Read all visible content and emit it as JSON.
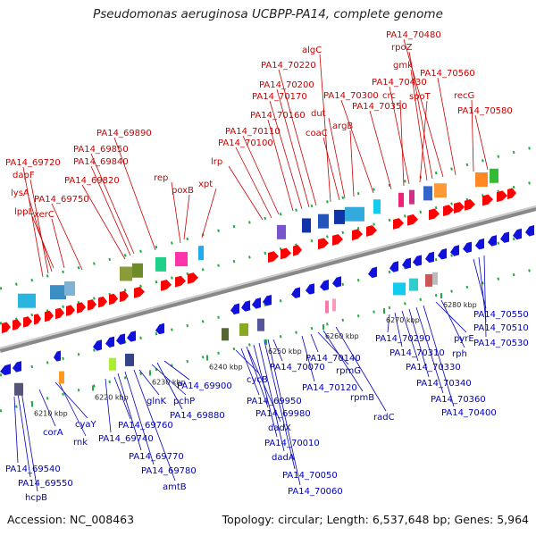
{
  "title": "Pseudomonas aeruginosa UCBPP-PA14, complete genome",
  "accession": "Accession: NC_008463",
  "topology": "Topology: circular; Length: 6,537,648 bp; Genes: 5,964",
  "ticks": [
    "6210 kbp",
    "6220 kbp",
    "6230 kbp",
    "6240 kbp",
    "6250 kbp",
    "6260 kbp",
    "6270 kbp",
    "6280 kbp"
  ],
  "top_labels": [
    "PA14_69720",
    "dapF",
    "lysA",
    "lppL",
    "xerC",
    "PA14_69750",
    "PA14_69820",
    "PA14_69840",
    "PA14_69850",
    "PA14_69890",
    "rep",
    "poxB",
    "xpt",
    "lrp",
    "PA14_70100",
    "PA14_70110",
    "PA14_70160",
    "PA14_70170",
    "PA14_70200",
    "PA14_70220",
    "algC",
    "coaC",
    "dut",
    "argB",
    "PA14_70300",
    "PA14_70350",
    "crc",
    "PA14_70430",
    "spoT",
    "gmk",
    "rpoZ",
    "PA14_70480",
    "PA14_70560",
    "recG",
    "PA14_70580"
  ],
  "bottom_labels": [
    "PA14_69540",
    "PA14_69550",
    "hcpB",
    "corA",
    "cyaY",
    "rnk",
    "PA14_69740",
    "PA14_69760",
    "PA14_69770",
    "PA14_69780",
    "amtB",
    "glnK",
    "pchP",
    "PA14_69880",
    "PA14_69900",
    "cycB",
    "PA14_69950",
    "PA14_69980",
    "PA14_70010",
    "dadX",
    "dadA",
    "PA14_70050",
    "PA14_70060",
    "PA14_70070",
    "PA14_70120",
    "PA14_70140",
    "rpmG",
    "rpmB",
    "radC",
    "PA14_70290",
    "PA14_70310",
    "PA14_70330",
    "PA14_70340",
    "PA14_70360",
    "PA14_70400",
    "pyrE",
    "rph",
    "PA14_70550",
    "PA14_70510",
    "PA14_70530"
  ]
}
